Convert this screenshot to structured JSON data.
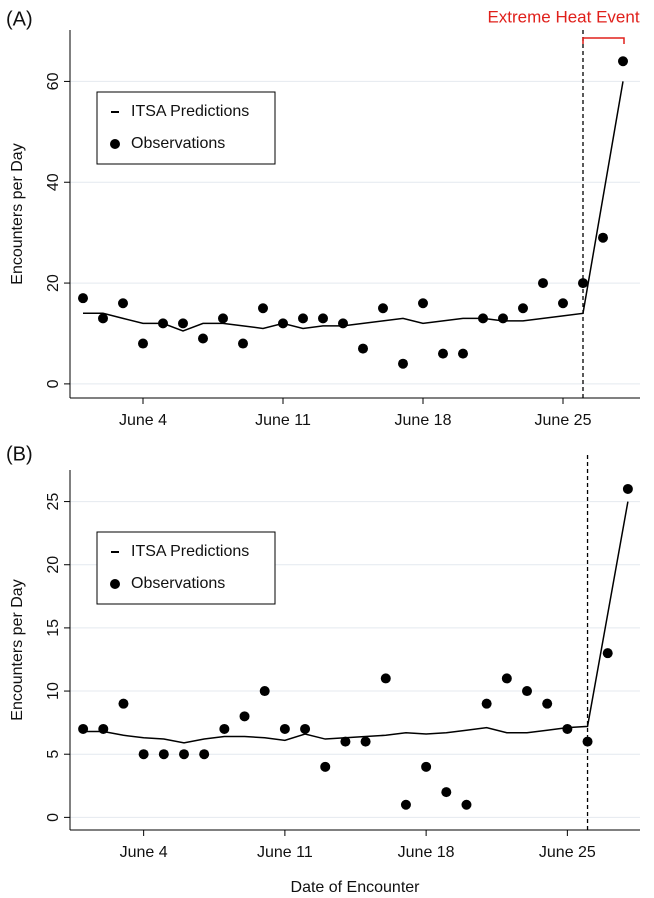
{
  "chart_data": [
    {
      "type": "line",
      "panel_label": "(A)",
      "y_label": "Encounters per Day",
      "annotation": "Extreme Heat Event",
      "annotation_color": "#e0201b",
      "x": [
        1,
        2,
        3,
        4,
        5,
        6,
        7,
        8,
        9,
        10,
        11,
        12,
        13,
        14,
        15,
        16,
        17,
        18,
        19,
        20,
        21,
        22,
        23,
        24,
        25,
        26,
        27,
        28
      ],
      "series": [
        {
          "name": "ITSA Predictions",
          "color": "#000000",
          "style": "line",
          "values": [
            14,
            14,
            13,
            12,
            12,
            10.5,
            12,
            12,
            11.5,
            11,
            12,
            11,
            11.5,
            11.5,
            12,
            12.5,
            13,
            12,
            12.5,
            13,
            13,
            12.5,
            12.5,
            13,
            13.5,
            14,
            37,
            60
          ]
        },
        {
          "name": "Observations",
          "color": "#000000",
          "style": "points",
          "values": [
            17,
            13,
            16,
            8,
            12,
            12,
            9,
            13,
            8,
            15,
            12,
            13,
            13,
            12,
            7,
            15,
            4,
            16,
            6,
            6,
            13,
            13,
            15,
            20,
            16,
            20,
            29,
            64
          ]
        }
      ],
      "xlim": [
        0.35,
        28.85
      ],
      "xticks": [
        {
          "value": 4,
          "label": "June 4"
        },
        {
          "value": 11,
          "label": "June 11"
        },
        {
          "value": 18,
          "label": "June 18"
        },
        {
          "value": 25,
          "label": "June 25"
        }
      ],
      "ylim": [
        -2.8,
        70.2
      ],
      "yticks": [
        0,
        20,
        40,
        60
      ],
      "grid": true,
      "legend": "upper left",
      "event_x": 26
    },
    {
      "type": "line",
      "panel_label": "(B)",
      "y_label": "Encounters per Day",
      "x_label": "Date of Encounter",
      "x": [
        1,
        2,
        3,
        4,
        5,
        6,
        7,
        8,
        9,
        10,
        11,
        12,
        13,
        14,
        15,
        16,
        17,
        18,
        19,
        20,
        21,
        22,
        23,
        24,
        25,
        26,
        27,
        28
      ],
      "series": [
        {
          "name": "ITSA Predictions",
          "color": "#000000",
          "style": "line",
          "values": [
            6.8,
            6.8,
            6.5,
            6.3,
            6.2,
            5.9,
            6.2,
            6.4,
            6.4,
            6.3,
            6.1,
            6.6,
            6.2,
            6.3,
            6.4,
            6.5,
            6.7,
            6.6,
            6.7,
            6.9,
            7.1,
            6.7,
            6.7,
            6.9,
            7.1,
            7.2,
            16.1,
            25
          ]
        },
        {
          "name": "Observations",
          "color": "#000000",
          "style": "points",
          "values": [
            7,
            7,
            9,
            5,
            5,
            5,
            5,
            7,
            8,
            10,
            7,
            7,
            4,
            6,
            6,
            11,
            1,
            4,
            2,
            1,
            9,
            11,
            10,
            9,
            7,
            6,
            13,
            26
          ]
        }
      ],
      "xlim": [
        0.35,
        28.6
      ],
      "xticks": [
        {
          "value": 4,
          "label": "June 4"
        },
        {
          "value": 11,
          "label": "June 11"
        },
        {
          "value": 18,
          "label": "June 18"
        },
        {
          "value": 25,
          "label": "June 25"
        }
      ],
      "ylim": [
        -1.0,
        27.5
      ],
      "yticks": [
        0,
        5,
        10,
        15,
        20,
        25
      ],
      "grid": true,
      "legend": "upper left",
      "event_x": 26
    }
  ]
}
